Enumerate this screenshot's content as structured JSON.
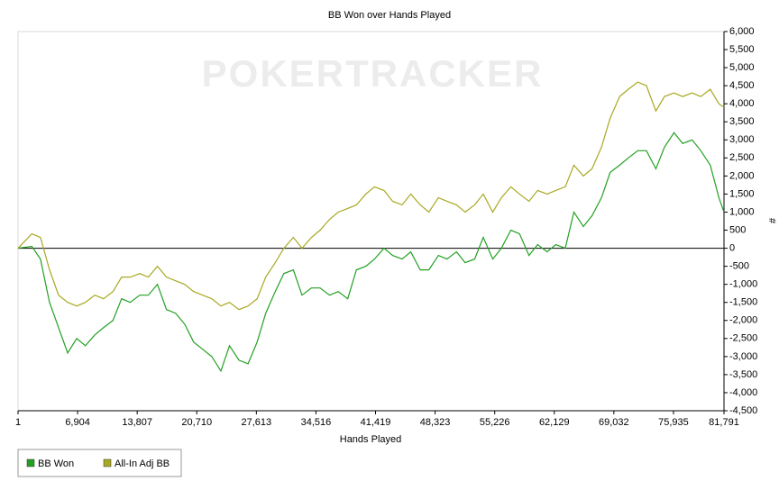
{
  "chart_data": {
    "type": "line",
    "title": "BB Won over Hands Played",
    "watermark": "POKERTRACKER",
    "x_label": "Hands Played",
    "y_label": "#",
    "x": [
      1,
      1600,
      2600,
      3650,
      4700,
      5750,
      6800,
      7800,
      8900,
      9900,
      11000,
      12000,
      13000,
      14100,
      15100,
      16150,
      17200,
      18250,
      19300,
      20350,
      21400,
      22450,
      23500,
      24500,
      25600,
      26650,
      27700,
      28700,
      29800,
      30800,
      31900,
      32900,
      34000,
      35000,
      36100,
      37100,
      38200,
      39200,
      40300,
      41300,
      42400,
      43400,
      44500,
      45500,
      46600,
      47600,
      48700,
      49700,
      50800,
      51800,
      52900,
      53900,
      55000,
      56000,
      57100,
      58100,
      59200,
      60200,
      61300,
      62300,
      63400,
      64400,
      65500,
      66500,
      67600,
      68600,
      69700,
      70700,
      71800,
      72800,
      73900,
      74900,
      76000,
      77000,
      78100,
      79100,
      80200,
      81200,
      81791
    ],
    "series": [
      {
        "name": "BB Won",
        "color": "#22a022",
        "values": [
          0,
          50,
          -300,
          -1500,
          -2200,
          -2900,
          -2500,
          -2700,
          -2400,
          -2200,
          -2000,
          -1400,
          -1500,
          -1300,
          -1300,
          -1000,
          -1700,
          -1800,
          -2100,
          -2600,
          -2800,
          -3000,
          -3400,
          -2700,
          -3100,
          -3200,
          -2600,
          -1800,
          -1200,
          -700,
          -600,
          -1300,
          -1100,
          -1100,
          -1300,
          -1200,
          -1400,
          -600,
          -500,
          -300,
          0,
          -200,
          -300,
          -100,
          -600,
          -600,
          -200,
          -300,
          -100,
          -400,
          -300,
          300,
          -300,
          0,
          500,
          400,
          -200,
          100,
          -100,
          100,
          0,
          1000,
          600,
          900,
          1400,
          2100,
          2300,
          2500,
          2700,
          2700,
          2200,
          2800,
          3200,
          2900,
          3000,
          2700,
          2300,
          1400,
          1000
        ]
      },
      {
        "name": "All-In Adj BB",
        "color": "#a8a822",
        "values": [
          0,
          400,
          300,
          -600,
          -1300,
          -1500,
          -1600,
          -1500,
          -1300,
          -1400,
          -1200,
          -800,
          -800,
          -700,
          -800,
          -500,
          -800,
          -900,
          -1000,
          -1200,
          -1300,
          -1400,
          -1600,
          -1500,
          -1700,
          -1600,
          -1400,
          -800,
          -400,
          0,
          300,
          0,
          300,
          500,
          800,
          1000,
          1100,
          1200,
          1500,
          1700,
          1600,
          1300,
          1200,
          1500,
          1200,
          1000,
          1400,
          1300,
          1200,
          1000,
          1200,
          1500,
          1000,
          1400,
          1700,
          1500,
          1300,
          1600,
          1500,
          1600,
          1700,
          2300,
          2000,
          2200,
          2800,
          3600,
          4200,
          4400,
          4600,
          4500,
          3800,
          4200,
          4300,
          4200,
          4300,
          4200,
          4400,
          4000,
          3900
        ]
      }
    ],
    "xlim": [
      1,
      81791
    ],
    "xticks": [
      1,
      {
        "value": 6904,
        "label": "6,904"
      },
      {
        "value": 13807,
        "label": "13,807"
      },
      {
        "value": 20710,
        "label": "20,710"
      },
      {
        "value": 27613,
        "label": "27,613"
      },
      {
        "value": 34516,
        "label": "34,516"
      },
      {
        "value": 41419,
        "label": "41,419"
      },
      {
        "value": 48323,
        "label": "48,323"
      },
      {
        "value": 55226,
        "label": "55,226"
      },
      {
        "value": 62129,
        "label": "62,129"
      },
      {
        "value": 69032,
        "label": "69,032"
      },
      {
        "value": 75935,
        "label": "75,935"
      },
      {
        "value": 81791,
        "label": "81,791"
      }
    ],
    "ylim": [
      -4500,
      6000
    ],
    "yticks": [
      {
        "value": -4500,
        "label": "-4,500"
      },
      {
        "value": -4000,
        "label": "-4,000"
      },
      {
        "value": -3500,
        "label": "-3,500"
      },
      {
        "value": -3000,
        "label": "-3,000"
      },
      {
        "value": -2500,
        "label": "-2,500"
      },
      {
        "value": -2000,
        "label": "-2,000"
      },
      {
        "value": -1500,
        "label": "-1,500"
      },
      {
        "value": -1000,
        "label": "-1,000"
      },
      -500,
      0,
      500,
      {
        "value": 1000,
        "label": "1,000"
      },
      {
        "value": 1500,
        "label": "1,500"
      },
      {
        "value": 2000,
        "label": "2,000"
      },
      {
        "value": 2500,
        "label": "2,500"
      },
      {
        "value": 3000,
        "label": "3,000"
      },
      {
        "value": 3500,
        "label": "3,500"
      },
      {
        "value": 4000,
        "label": "4,000"
      },
      {
        "value": 4500,
        "label": "4,500"
      },
      {
        "value": 5000,
        "label": "5,000"
      },
      {
        "value": 5500,
        "label": "5,500"
      },
      {
        "value": 6000,
        "label": "6,000"
      }
    ],
    "y_axis_side": "right",
    "zero_line": true,
    "legend": "bottom-left"
  }
}
